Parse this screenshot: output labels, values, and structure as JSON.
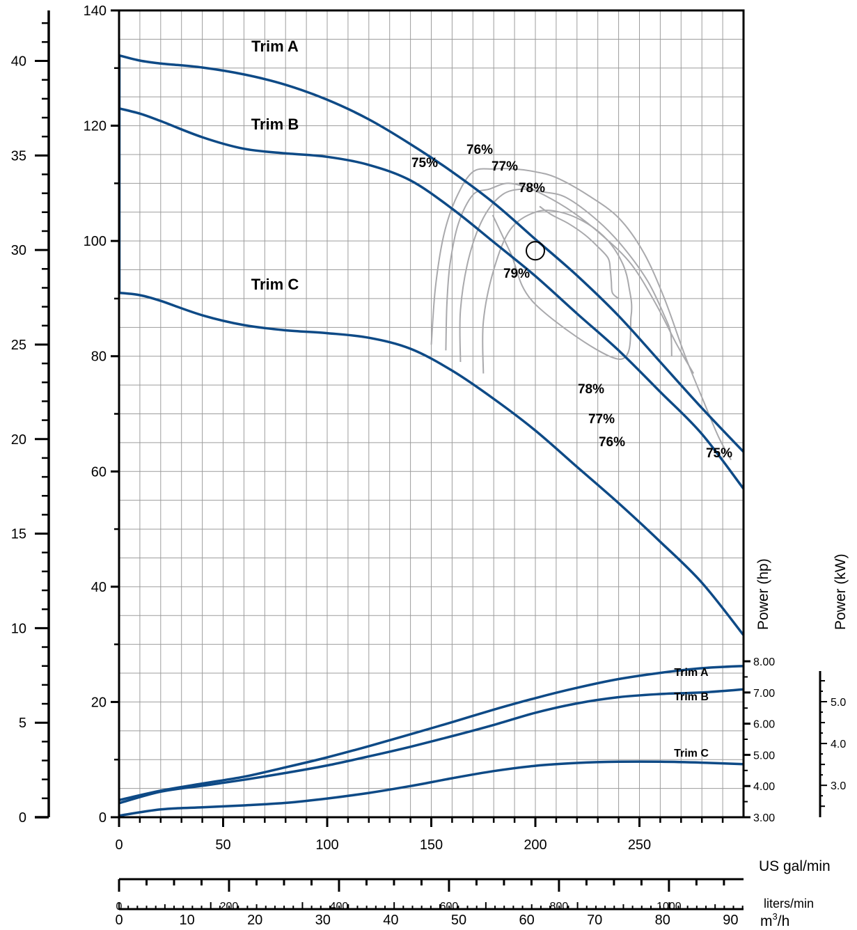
{
  "chart_data": {
    "type": "line",
    "axes": {
      "flow_usgpm": {
        "label": "US gal/min",
        "range": [
          0,
          300
        ],
        "ticks": [
          "0",
          "50",
          "100",
          "150",
          "200",
          "250"
        ]
      },
      "flow_lpm": {
        "label": "liters/min",
        "range": [
          0,
          1135.6
        ],
        "ticks": [
          "0",
          "200",
          "400",
          "600",
          "800",
          "1000"
        ]
      },
      "flow_m3h": {
        "label_main": "m",
        "label_sup": "3",
        "label_tail": "/h",
        "range": [
          0,
          68.1
        ],
        "ticks": [
          "0",
          "10",
          "20",
          "30",
          "40",
          "50",
          "60",
          "70",
          "80",
          "90"
        ]
      },
      "head_ft": {
        "label": "",
        "range": [
          0,
          140
        ],
        "ticks": [
          "0",
          "20",
          "40",
          "60",
          "80",
          "100",
          "120",
          "140"
        ]
      },
      "head_m": {
        "label": "",
        "range": [
          0,
          42.67
        ],
        "ticks": [
          "0",
          "5",
          "10",
          "15",
          "20",
          "25",
          "30",
          "35",
          "40"
        ]
      },
      "power_hp": {
        "label": "Power (hp)",
        "range": [
          3,
          8
        ],
        "ticks": [
          "3.00",
          "4.00",
          "5.00",
          "6.00",
          "7.00",
          "8.00"
        ]
      },
      "power_kw": {
        "label": "Power (kW)",
        "range": [
          2.237,
          5.966
        ],
        "ticks": [
          "3.0",
          "4.0",
          "5.0"
        ]
      }
    },
    "grid": true,
    "head_curves": [
      {
        "name": "Trim A",
        "x": [
          0,
          10,
          20,
          40,
          60,
          80,
          100,
          120,
          140,
          160,
          180,
          200,
          220,
          240,
          260,
          280,
          300
        ],
        "y": [
          132.2,
          131.3,
          130.8,
          130.1,
          128.9,
          127.1,
          124.5,
          121.1,
          116.8,
          112.0,
          106.6,
          100.3,
          94.0,
          87.0,
          79.0,
          71.0,
          63.4
        ]
      },
      {
        "name": "Trim B",
        "x": [
          0,
          10,
          20,
          40,
          60,
          80,
          100,
          120,
          140,
          160,
          180,
          200,
          220,
          240,
          260,
          280,
          300
        ],
        "y": [
          123.0,
          122.1,
          120.8,
          118.0,
          116.0,
          115.2,
          114.6,
          113.2,
          110.5,
          105.6,
          99.8,
          93.9,
          87.4,
          81.0,
          73.8,
          66.5,
          57.0
        ]
      },
      {
        "name": "Trim C",
        "x": [
          0,
          10,
          20,
          40,
          60,
          80,
          100,
          120,
          140,
          160,
          180,
          200,
          220,
          240,
          260,
          280,
          300
        ],
        "y": [
          91.0,
          90.6,
          89.6,
          87.1,
          85.4,
          84.5,
          84.0,
          83.2,
          81.3,
          77.5,
          72.6,
          67.1,
          60.8,
          54.5,
          47.8,
          40.7,
          31.6
        ]
      }
    ],
    "efficiency_contours": [
      {
        "label": "75%",
        "x": [
          150,
          152,
          156,
          162,
          170,
          180,
          190,
          200,
          210,
          225,
          240,
          252,
          262,
          272,
          281,
          288,
          294
        ],
        "y": [
          82,
          92,
          101,
          107.5,
          112,
          112.5,
          112.5,
          112,
          111,
          108,
          104,
          98,
          90,
          80,
          72,
          66,
          62
        ]
      },
      {
        "label": "76%",
        "x": [
          157,
          157.5,
          159,
          163,
          170,
          178,
          186,
          194,
          204,
          218,
          232,
          246,
          258,
          268,
          276
        ],
        "y": [
          81,
          89,
          96,
          103,
          108,
          109,
          110,
          109.5,
          108,
          105,
          101,
          96,
          89,
          82,
          77
        ]
      },
      {
        "label": "77%",
        "x": [
          164,
          164,
          168,
          175,
          184,
          194,
          204,
          215,
          230,
          242,
          254,
          262,
          265,
          265.5
        ],
        "y": [
          79,
          88,
          97,
          104,
          108,
          109,
          108.5,
          107.5,
          103.5,
          99,
          93,
          87,
          84,
          80
        ]
      },
      {
        "label": "78%",
        "x": [
          175,
          175,
          180,
          188,
          200,
          212,
          225,
          235,
          242,
          245,
          246,
          240,
          200,
          188,
          179.5
        ],
        "y": [
          77,
          86,
          95,
          102,
          105,
          105,
          103,
          100,
          96,
          92,
          87,
          79.5,
          89,
          98,
          104.5
        ]
      },
      {
        "label": "79%",
        "x": [
          202,
          208,
          216,
          224,
          230,
          235,
          236,
          236.5,
          237,
          240
        ],
        "y": [
          106,
          104.5,
          103,
          101,
          99,
          97,
          95,
          93,
          91,
          90
        ]
      }
    ],
    "efficiency_labels": [
      "75%",
      "76%",
      "77%",
      "78%",
      "79%",
      "78%",
      "77%",
      "76%",
      "75%"
    ],
    "operating_point": {
      "x": 200,
      "y": 98.3
    },
    "power_curves": [
      {
        "name": "Trim A",
        "x": [
          0,
          20,
          40,
          60,
          80,
          100,
          120,
          140,
          160,
          180,
          200,
          220,
          240,
          260,
          280,
          300
        ],
        "y": [
          3.55,
          3.85,
          4.08,
          4.3,
          4.6,
          4.92,
          5.28,
          5.66,
          6.05,
          6.45,
          6.82,
          7.15,
          7.43,
          7.63,
          7.78,
          7.85
        ]
      },
      {
        "name": "Trim B",
        "x": [
          0,
          20,
          40,
          60,
          80,
          100,
          120,
          140,
          160,
          180,
          200,
          220,
          240,
          260,
          280,
          300
        ],
        "y": [
          3.45,
          3.82,
          4.01,
          4.2,
          4.42,
          4.66,
          4.95,
          5.26,
          5.6,
          5.96,
          6.35,
          6.65,
          6.85,
          6.95,
          7.0,
          7.1
        ]
      },
      {
        "name": "Trim C",
        "x": [
          0,
          20,
          40,
          60,
          80,
          100,
          120,
          140,
          160,
          180,
          200,
          220,
          240,
          260,
          280,
          300
        ],
        "y": [
          3.05,
          3.25,
          3.32,
          3.38,
          3.46,
          3.6,
          3.78,
          4.0,
          4.25,
          4.48,
          4.65,
          4.74,
          4.78,
          4.78,
          4.75,
          4.7
        ]
      }
    ]
  }
}
